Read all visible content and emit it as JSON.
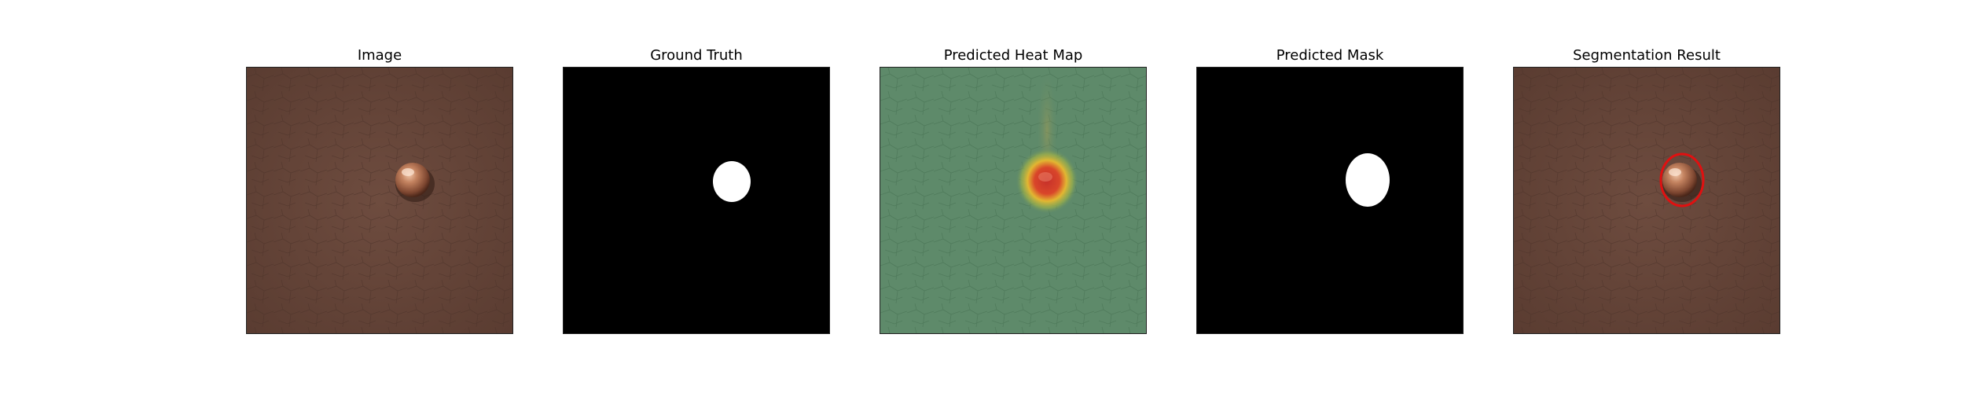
{
  "figure": {
    "panels": [
      {
        "id": "image",
        "title": "Image"
      },
      {
        "id": "ground-truth",
        "title": "Ground Truth"
      },
      {
        "id": "heat-map",
        "title": "Predicted Heat Map"
      },
      {
        "id": "predicted-mask",
        "title": "Predicted Mask"
      },
      {
        "id": "segmentation-result",
        "title": "Segmentation Result"
      }
    ]
  },
  "colors": {
    "leather": "#6b4a3d",
    "leather_dark": "#5a3c31",
    "mask_background": "#000000",
    "mask_foreground": "#ffffff",
    "heat_background": "#5e8a6a",
    "heat_hot": "#d23b22",
    "heat_warm": "#e0b830",
    "contour": "#e01010",
    "bead": "#b8755a"
  }
}
